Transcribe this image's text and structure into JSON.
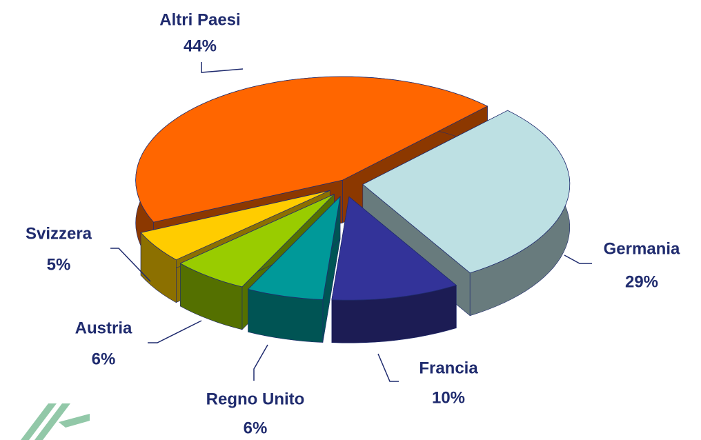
{
  "chart_data": {
    "type": "pie",
    "categories": [
      "Altri Paesi",
      "Germania",
      "Francia",
      "Regno Unito",
      "Austria",
      "Svizzera"
    ],
    "values": [
      44,
      29,
      10,
      6,
      6,
      5
    ],
    "value_labels": [
      "44%",
      "29%",
      "10%",
      "6%",
      "6%",
      "5%"
    ],
    "colors": [
      "#ff6600",
      "#bde0e3",
      "#333399",
      "#009999",
      "#99cc00",
      "#ffcc00"
    ]
  }
}
